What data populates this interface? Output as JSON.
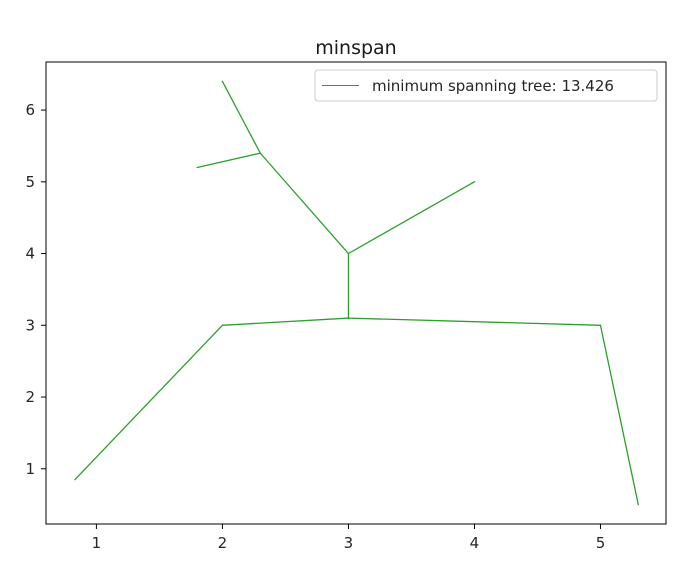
{
  "chart_data": {
    "type": "line",
    "title": "minspan",
    "xlabel": "",
    "ylabel": "",
    "xlim": [
      0.6,
      5.52
    ],
    "ylim": [
      0.23,
      6.67
    ],
    "xticks": [
      1,
      2,
      3,
      4,
      5
    ],
    "yticks": [
      1,
      2,
      3,
      4,
      5,
      6
    ],
    "grid": false,
    "legend_position": "top-right",
    "series": [
      {
        "name": "minimum spanning tree: 13.426",
        "color": "#2ca02c",
        "segments": [
          [
            [
              0.83,
              0.85
            ],
            [
              2.0,
              3.0
            ]
          ],
          [
            [
              2.0,
              3.0
            ],
            [
              3.0,
              3.1
            ]
          ],
          [
            [
              3.0,
              3.1
            ],
            [
              5.0,
              3.0
            ]
          ],
          [
            [
              5.0,
              3.0
            ],
            [
              5.3,
              0.5
            ]
          ],
          [
            [
              3.0,
              3.1
            ],
            [
              3.0,
              4.0
            ]
          ],
          [
            [
              3.0,
              4.0
            ],
            [
              4.0,
              5.0
            ]
          ],
          [
            [
              3.0,
              4.0
            ],
            [
              2.3,
              5.4
            ]
          ],
          [
            [
              2.3,
              5.4
            ],
            [
              1.8,
              5.2
            ]
          ],
          [
            [
              2.3,
              5.4
            ],
            [
              2.0,
              6.4
            ]
          ]
        ]
      }
    ]
  }
}
